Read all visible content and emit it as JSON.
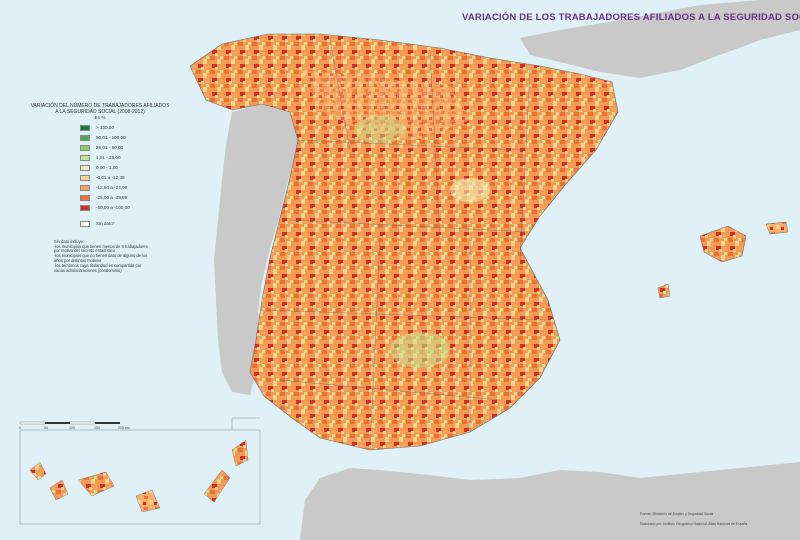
{
  "title": "VARIACIÓN DE  LOS TRABAJADORES AFILIADOS A LA SEGURIDAD SOCIAL",
  "legend": {
    "title_lines": [
      "VARIACIÓN DEL NÚMERO DE TRABAJADORES AFILIADOS",
      "A LA SEGURIDAD SOCIAL (2008-2012)"
    ],
    "unit": "En %",
    "items": [
      {
        "label": "> 100,00",
        "color": "#1b7a3a"
      },
      {
        "label": "50,01 - 100,00",
        "color": "#4faa47"
      },
      {
        "label": "25,01 - 50,00",
        "color": "#8fcf62"
      },
      {
        "label": "1,01 - 25,00",
        "color": "#c8e490"
      },
      {
        "label": "0,00 - 1,00",
        "color": "#f1f0b8"
      },
      {
        "label": "-0,01 a -12,49",
        "color": "#fbd28c"
      },
      {
        "label": "-12,50 a -24,99",
        "color": "#f7a35a"
      },
      {
        "label": "-25,00 a -49,99",
        "color": "#ee6f36"
      },
      {
        "label": "-50,00 a -100,00",
        "color": "#d12f22"
      }
    ],
    "no_data": {
      "label": "Sin dato*",
      "color": "#ffffff"
    },
    "notes": [
      "Sin dato incluye:",
      "-los municipios que tienen menos de 5 trabajadores",
      "por motivo del secreto estadístico",
      "-los municipios que no tienen dato de alguno de los",
      "años por distintos motivos",
      "-los territorios cuya titularidad es compartida por",
      "varias administraciones (condominio)"
    ]
  },
  "scale": {
    "labels": [
      "0",
      "50",
      "100",
      "150",
      "200 km"
    ]
  },
  "source": {
    "line1": "Fuente: Ministerio de Empleo y Seguridad Social",
    "line2": "Elaborado por: Instituto Geográfico Nacional, Atlas Nacional de España"
  },
  "colors": {
    "sea": "#dff1f7",
    "neighbor_land": "#c9c9c9",
    "region_border": "#6b6b6b",
    "title": "#6a2d86"
  }
}
